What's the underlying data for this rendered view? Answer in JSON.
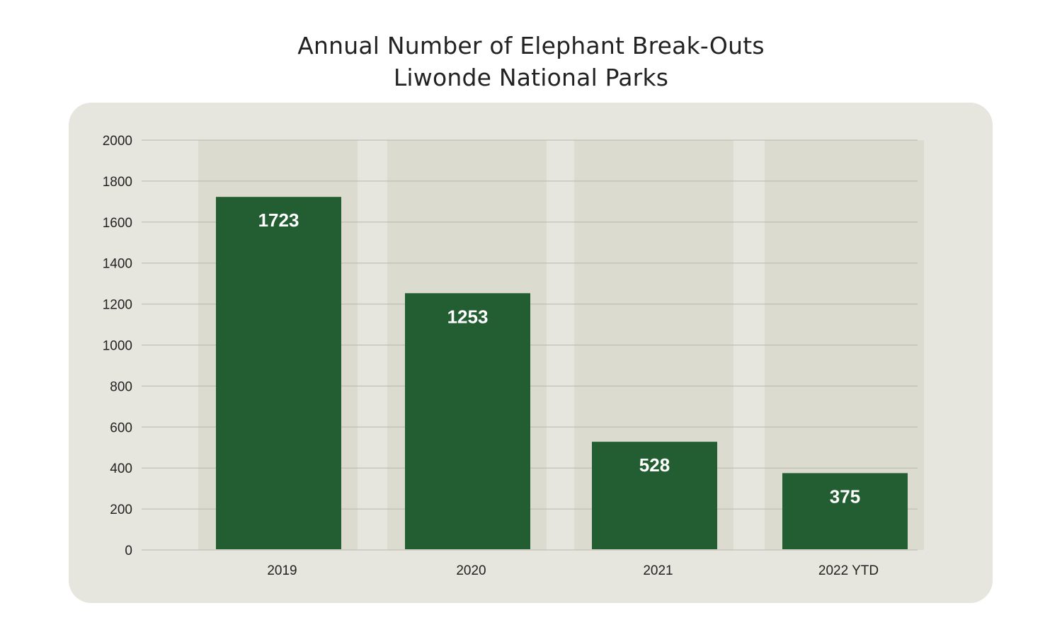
{
  "title": {
    "line1": "Annual Number of Elephant Break-Outs",
    "line2": "Liwonde National Parks"
  },
  "colors": {
    "bar": "#235e33",
    "column_band": "#dbdbcf",
    "panel": "#e6e6de",
    "gridline": "#b8b8ac",
    "text": "#222222",
    "value_text": "#ffffff"
  },
  "chart_data": {
    "type": "bar",
    "title": "Annual Number of Elephant Break-Outs\nLiwonde National Parks",
    "categories": [
      "2019",
      "2020",
      "2021",
      "2022 YTD"
    ],
    "values": [
      1723,
      1253,
      528,
      375
    ],
    "value_labels": [
      "1723",
      "1253",
      "528",
      "375"
    ],
    "xlabel": "",
    "ylabel": "",
    "ylim": [
      0,
      2000
    ],
    "yticks": [
      0,
      200,
      400,
      600,
      800,
      1000,
      1200,
      1400,
      1600,
      1800,
      2000
    ],
    "grid": true,
    "legend": "none"
  }
}
